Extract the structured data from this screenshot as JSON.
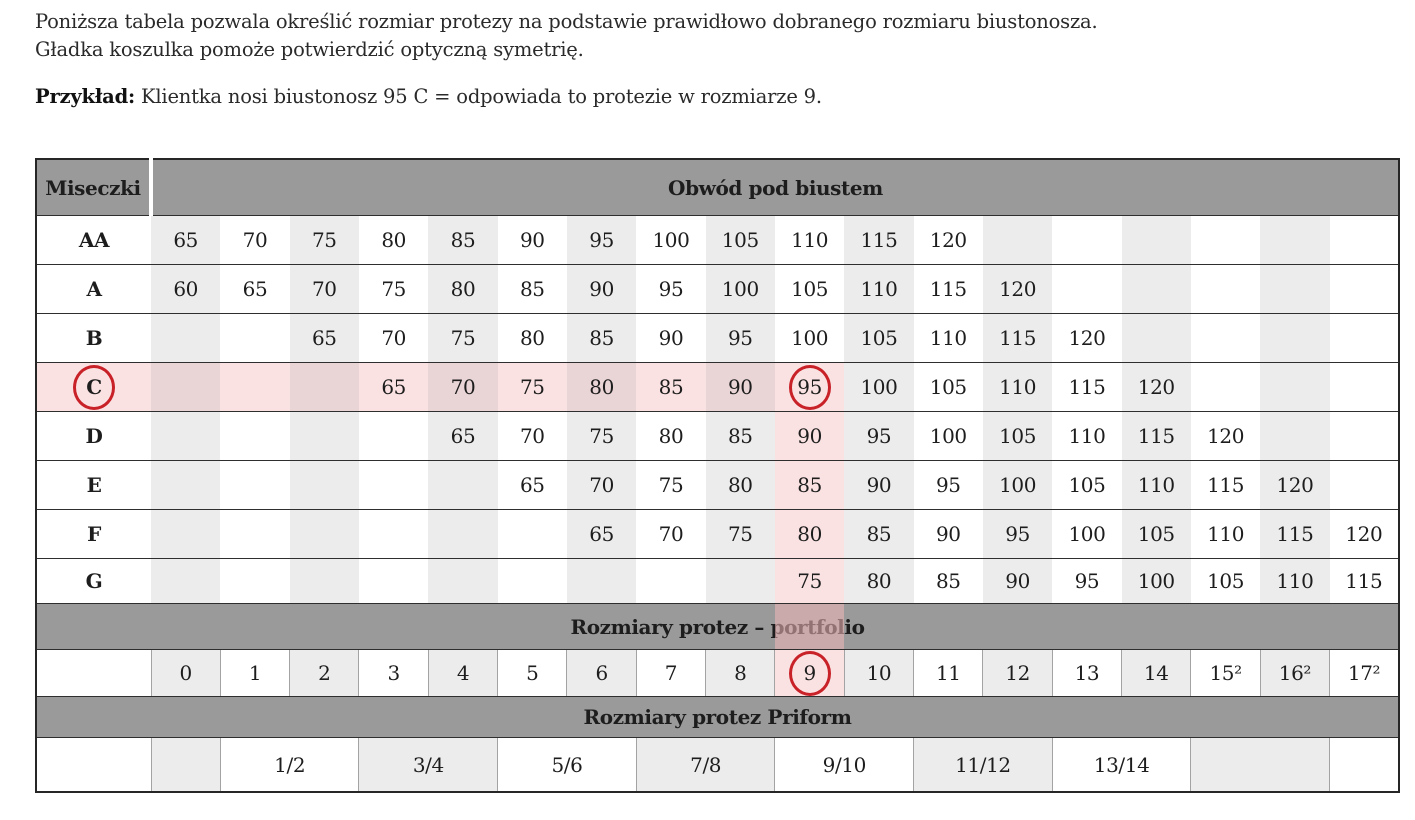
{
  "intro": {
    "line1": "Poniższa tabela pozwala określić rozmiar protezy na podstawie prawidłowo dobranego rozmiaru biustonosza.",
    "line2": "Gładka koszulka pomoże potwierdzić optyczną symetrię.",
    "example_label": "Przykład:",
    "example_text": " Klientka nosi biustonosz 95 C = odpowiada to protezie w rozmiarze 9."
  },
  "table": {
    "cups_header": "Miseczki",
    "band_header": "Obwód pod biustem",
    "portfolio_band": "Rozmiary protez – portfolio",
    "priform_band": "Rozmiary protez Priform",
    "num_cols": 18,
    "highlight_col": 10,
    "colors": {
      "accent_red": "#c82128",
      "band_gray": "#9a9a9a",
      "stripe_gray": "#ececec",
      "highlight_pink": "#fbe2e2",
      "highlight_pink_dark": "#e9d4d6"
    },
    "cup_rows": [
      {
        "label": "AA",
        "start": 1,
        "values": [
          65,
          70,
          75,
          80,
          85,
          90,
          95,
          100,
          105,
          110,
          115,
          120
        ]
      },
      {
        "label": "A",
        "start": 1,
        "values": [
          60,
          65,
          70,
          75,
          80,
          85,
          90,
          95,
          100,
          105,
          110,
          115,
          120
        ]
      },
      {
        "label": "B",
        "start": 3,
        "values": [
          65,
          70,
          75,
          80,
          85,
          90,
          95,
          100,
          105,
          110,
          115,
          120
        ]
      },
      {
        "label": "C",
        "start": 4,
        "values": [
          65,
          70,
          75,
          80,
          85,
          90,
          95,
          100,
          105,
          110,
          115,
          120
        ],
        "row_highlight": true,
        "label_circled": true,
        "circled_value": 95
      },
      {
        "label": "D",
        "start": 5,
        "values": [
          65,
          70,
          75,
          80,
          85,
          90,
          95,
          100,
          105,
          110,
          115,
          120
        ],
        "col_highlight": true
      },
      {
        "label": "E",
        "start": 6,
        "values": [
          65,
          70,
          75,
          80,
          85,
          90,
          95,
          100,
          105,
          110,
          115,
          120
        ],
        "col_highlight": true
      },
      {
        "label": "F",
        "start": 7,
        "values": [
          65,
          70,
          75,
          80,
          85,
          90,
          95,
          100,
          105,
          110,
          115,
          120
        ],
        "col_highlight": true
      },
      {
        "label": "G",
        "start": 10,
        "values": [
          75,
          80,
          85,
          90,
          95,
          100,
          105,
          110,
          115
        ],
        "col_highlight": true
      }
    ],
    "portfolio_sizes": [
      "0",
      "1",
      "2",
      "3",
      "4",
      "5",
      "6",
      "7",
      "8",
      "9",
      "10",
      "11",
      "12",
      "13",
      "14",
      "15²",
      "16²",
      "17²"
    ],
    "portfolio_circled": "9",
    "priform_cells": [
      {
        "span": 1,
        "label": "",
        "shade": "gray"
      },
      {
        "span": 2,
        "label": "1/2",
        "shade": "white"
      },
      {
        "span": 2,
        "label": "3/4",
        "shade": "gray"
      },
      {
        "span": 2,
        "label": "5/6",
        "shade": "white"
      },
      {
        "span": 2,
        "label": "7/8",
        "shade": "gray"
      },
      {
        "span": 2,
        "label": "9/10",
        "shade": "white"
      },
      {
        "span": 2,
        "label": "11/12",
        "shade": "gray"
      },
      {
        "span": 2,
        "label": "13/14",
        "shade": "white"
      },
      {
        "span": 2,
        "label": "",
        "shade": "gray"
      },
      {
        "span": 1,
        "label": "",
        "shade": "white"
      }
    ]
  }
}
